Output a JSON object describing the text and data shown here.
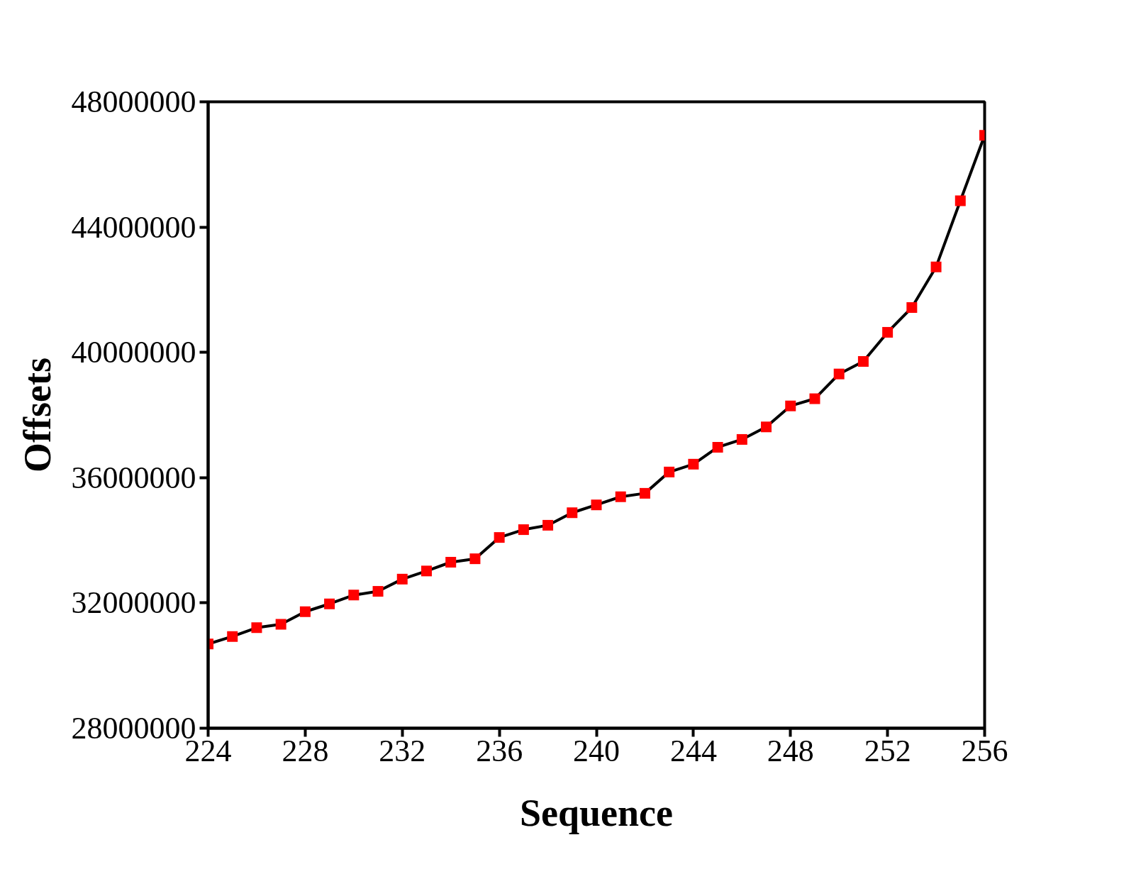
{
  "chart_data": {
    "type": "line",
    "xlabel": "Sequence",
    "ylabel": "Offsets",
    "x": [
      224,
      225,
      226,
      227,
      228,
      229,
      230,
      231,
      232,
      233,
      234,
      235,
      236,
      237,
      238,
      239,
      240,
      241,
      242,
      243,
      244,
      245,
      246,
      247,
      248,
      249,
      250,
      251,
      252,
      253,
      254,
      255,
      256
    ],
    "series": [
      {
        "color": "#000000",
        "colors": [
          "#ff0000",
          "#ff0000",
          "#ff0000",
          "#ff0000",
          "#ff0000",
          "#ff0000",
          "#ff0000",
          "#ff0000",
          "#ff0000",
          "#ff0000",
          "#ff0000",
          "#ff0000",
          "#ff0000",
          "#ff0000",
          "#ff0000",
          "#ff0000",
          "#ff0000",
          "#ff0000",
          "#ff0000",
          "#ff0000",
          "#ff0000",
          "#ff0000",
          "#ff0000",
          "#ff0000",
          "#ff0000",
          "#ff0000",
          "#ff0000",
          "#ff0000",
          "#ff0000",
          "#ff0000",
          "#ff0000",
          "#ff0000",
          "#ff0000"
        ],
        "values": [
          30690000,
          30930000,
          31210000,
          31320000,
          31720000,
          31970000,
          32250000,
          32370000,
          32760000,
          33020000,
          33300000,
          33410000,
          34090000,
          34340000,
          34480000,
          34880000,
          35130000,
          35390000,
          35500000,
          36180000,
          36430000,
          36970000,
          37220000,
          37620000,
          38290000,
          38520000,
          39310000,
          39710000,
          40640000,
          41430000,
          42730000,
          44840000,
          46930000
        ]
      }
    ],
    "marker": "square",
    "line_style": "solid",
    "grid": false,
    "xlim": [
      224,
      256
    ],
    "xticks": [
      224,
      228,
      232,
      236,
      240,
      244,
      248,
      252,
      256
    ],
    "ylim": [
      28000000,
      48000000
    ],
    "yticks": [
      28000000,
      32000000,
      36000000,
      40000000,
      44000000,
      48000000
    ]
  }
}
